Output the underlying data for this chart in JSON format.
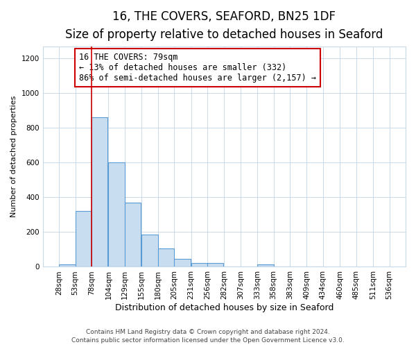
{
  "title": "16, THE COVERS, SEAFORD, BN25 1DF",
  "subtitle": "Size of property relative to detached houses in Seaford",
  "xlabel": "Distribution of detached houses by size in Seaford",
  "ylabel": "Number of detached properties",
  "bar_heights": [
    12,
    320,
    860,
    600,
    370,
    185,
    105,
    47,
    22,
    20,
    0,
    0,
    15,
    0,
    0,
    2
  ],
  "bin_starts": [
    28,
    53,
    78,
    104,
    129,
    155,
    180,
    205,
    231,
    256,
    282,
    307,
    333,
    358,
    383,
    409
  ],
  "bin_width": 25,
  "bar_color": "#c9ddf0",
  "bar_edge_color": "#5b9bd5",
  "vline_x": 78,
  "vline_color": "#cc0000",
  "annotation_text": "16 THE COVERS: 79sqm\n← 13% of detached houses are smaller (332)\n86% of semi-detached houses are larger (2,157) →",
  "annotation_box_facecolor": "#ffffff",
  "annotation_box_edgecolor": "#cc0000",
  "ylim": [
    0,
    1270
  ],
  "yticks": [
    0,
    200,
    400,
    600,
    800,
    1000,
    1200
  ],
  "xtick_positions": [
    28,
    53,
    78,
    104,
    129,
    155,
    180,
    205,
    231,
    256,
    282,
    307,
    333,
    358,
    383,
    409,
    434,
    460,
    485,
    511,
    536
  ],
  "xtick_labels": [
    "28sqm",
    "53sqm",
    "78sqm",
    "104sqm",
    "129sqm",
    "155sqm",
    "180sqm",
    "205sqm",
    "231sqm",
    "256sqm",
    "282sqm",
    "307sqm",
    "333sqm",
    "358sqm",
    "383sqm",
    "409sqm",
    "434sqm",
    "460sqm",
    "485sqm",
    "511sqm",
    "536sqm"
  ],
  "xlim": [
    3,
    561
  ],
  "footer_line1": "Contains HM Land Registry data © Crown copyright and database right 2024.",
  "footer_line2": "Contains public sector information licensed under the Open Government Licence v3.0.",
  "title_fontsize": 12,
  "subtitle_fontsize": 10,
  "xlabel_fontsize": 9,
  "ylabel_fontsize": 8,
  "tick_fontsize": 7.5,
  "footer_fontsize": 6.5,
  "annotation_fontsize": 8.5,
  "background_color": "#ffffff",
  "grid_color": "#c8daea"
}
